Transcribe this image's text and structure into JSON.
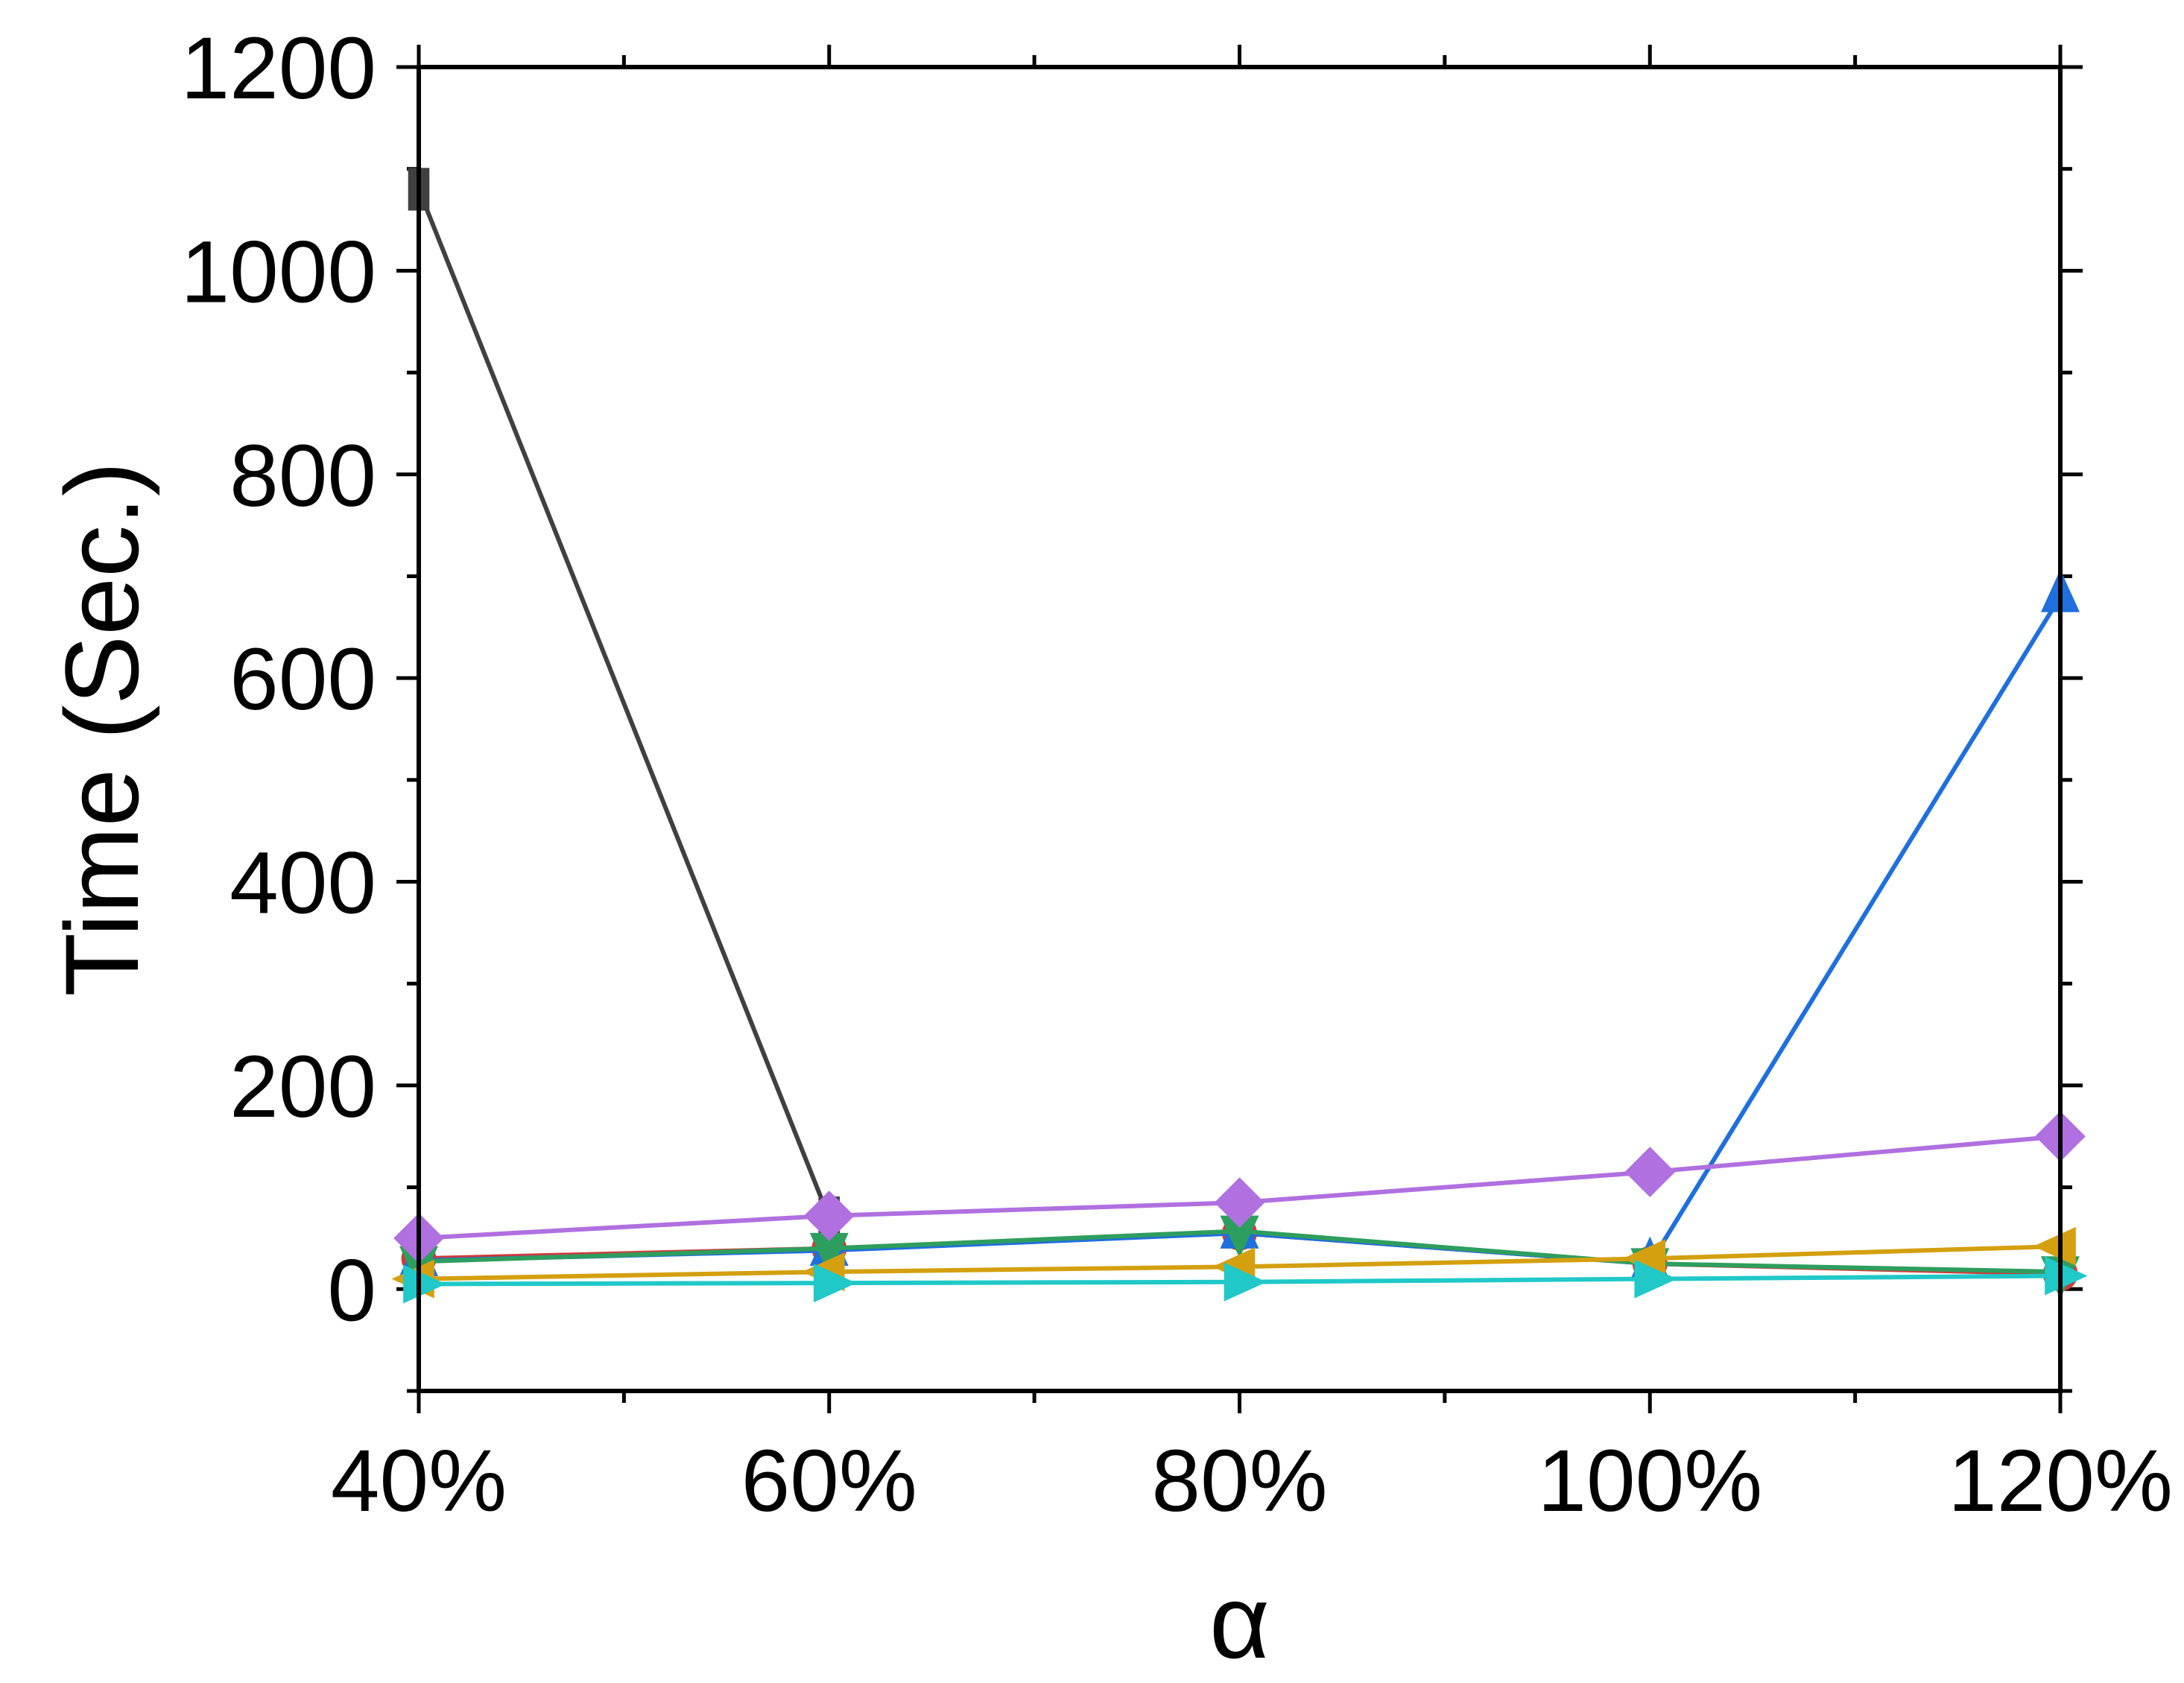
{
  "chart_data": {
    "type": "line",
    "title": "",
    "xlabel": "α",
    "ylabel": "Time (Sec.)",
    "x_tick_labels": [
      "40%",
      "60%",
      "80%",
      "100%",
      "120%"
    ],
    "x_values": [
      40,
      60,
      80,
      100,
      120
    ],
    "xlim": [
      40,
      120
    ],
    "ylim": [
      -100,
      1200
    ],
    "y_ticks": [
      0,
      200,
      400,
      600,
      800,
      1000,
      1200
    ],
    "grid": false,
    "legend": "none",
    "series": [
      {
        "color": "#404040",
        "marker": "square",
        "values": [
          1080,
          70,
          null,
          null,
          null
        ]
      },
      {
        "color": "#d03a3a",
        "marker": "circle",
        "values": [
          30,
          40,
          55,
          25,
          15
        ]
      },
      {
        "color": "#1f6fdc",
        "marker": "triangle-up",
        "values": [
          28,
          38,
          55,
          25,
          680
        ]
      },
      {
        "color": "#2e9e5e",
        "marker": "triangle-down",
        "values": [
          27,
          40,
          57,
          25,
          17
        ]
      },
      {
        "color": "#b070e0",
        "marker": "diamond",
        "values": [
          50,
          72,
          85,
          115,
          150
        ]
      },
      {
        "color": "#d4a010",
        "marker": "triangle-left",
        "values": [
          10,
          17,
          22,
          30,
          42
        ]
      },
      {
        "color": "#20c8c8",
        "marker": "triangle-right",
        "values": [
          5,
          6,
          7,
          10,
          13
        ]
      }
    ]
  }
}
